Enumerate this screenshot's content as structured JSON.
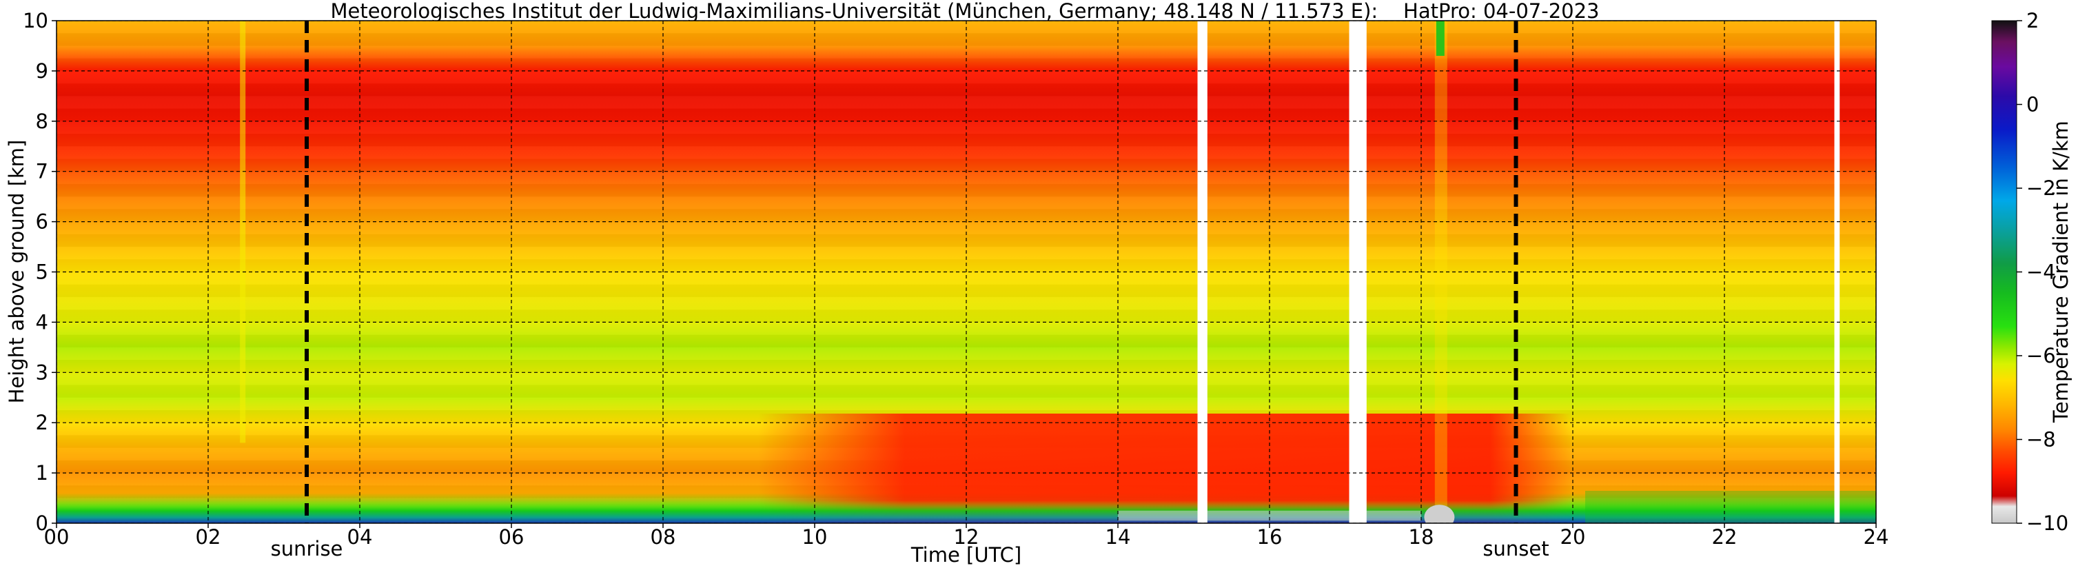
{
  "chart_data": {
    "type": "heatmap",
    "title": "Meteorologisches Institut der Ludwig-Maximilians-Universität (München, Germany; 48.148 N / 11.573 E):    HatPro: 04-07-2023",
    "xlabel": "Time [UTC]",
    "ylabel": "Height above ground [km]",
    "xlim": [
      0,
      24
    ],
    "ylim": [
      0,
      10
    ],
    "x_ticks": [
      0,
      2,
      4,
      6,
      8,
      10,
      12,
      14,
      16,
      18,
      20,
      22,
      24
    ],
    "x_tick_labels": [
      "00",
      "02",
      "04",
      "06",
      "08",
      "10",
      "12",
      "14",
      "16",
      "18",
      "20",
      "22",
      "24"
    ],
    "y_ticks": [
      0,
      1,
      2,
      3,
      4,
      5,
      6,
      7,
      8,
      9,
      10
    ],
    "y_tick_labels": [
      "0",
      "1",
      "2",
      "3",
      "4",
      "5",
      "6",
      "7",
      "8",
      "9",
      "10"
    ],
    "grid": true,
    "colorbar": {
      "label": "Temperature Gradient in K/km",
      "range": [
        -10,
        2
      ],
      "ticks": [
        2,
        0,
        -2,
        -4,
        -6,
        -8,
        -10
      ],
      "tick_labels": [
        "2",
        "0",
        "−2",
        "−4",
        "−6",
        "−8",
        "−10"
      ]
    },
    "annotations": [
      {
        "label": "sunrise",
        "x": 3.3
      },
      {
        "label": "sunset",
        "x": 19.25
      }
    ],
    "data_gaps": [
      [
        15.05,
        15.18
      ],
      [
        17.05,
        17.28
      ],
      [
        23.45,
        23.52
      ]
    ],
    "profile": [
      {
        "height_km": 0.0,
        "gradient": -3
      },
      {
        "height_km": 0.1,
        "gradient": -4.5
      },
      {
        "height_km": 0.3,
        "gradient": -5.5
      },
      {
        "height_km": 0.6,
        "gradient": -7.3
      },
      {
        "height_km": 1.0,
        "gradient": -7.6
      },
      {
        "height_km": 1.5,
        "gradient": -7.2
      },
      {
        "height_km": 2.0,
        "gradient": -6.6
      },
      {
        "height_km": 2.5,
        "gradient": -6.1
      },
      {
        "height_km": 3.0,
        "gradient": -6.3
      },
      {
        "height_km": 3.5,
        "gradient": -6.0
      },
      {
        "height_km": 4.0,
        "gradient": -6.3
      },
      {
        "height_km": 5.0,
        "gradient": -6.6
      },
      {
        "height_km": 5.5,
        "gradient": -7.0
      },
      {
        "height_km": 6.0,
        "gradient": -7.4
      },
      {
        "height_km": 6.5,
        "gradient": -7.8
      },
      {
        "height_km": 7.0,
        "gradient": -8.2
      },
      {
        "height_km": 7.3,
        "gradient": -8.5
      },
      {
        "height_km": 8.0,
        "gradient": -8.9
      },
      {
        "height_km": 8.5,
        "gradient": -9.0
      },
      {
        "height_km": 9.0,
        "gradient": -8.8
      },
      {
        "height_km": 9.5,
        "gradient": -7.6
      },
      {
        "height_km": 10.0,
        "gradient": -7.2
      }
    ]
  }
}
